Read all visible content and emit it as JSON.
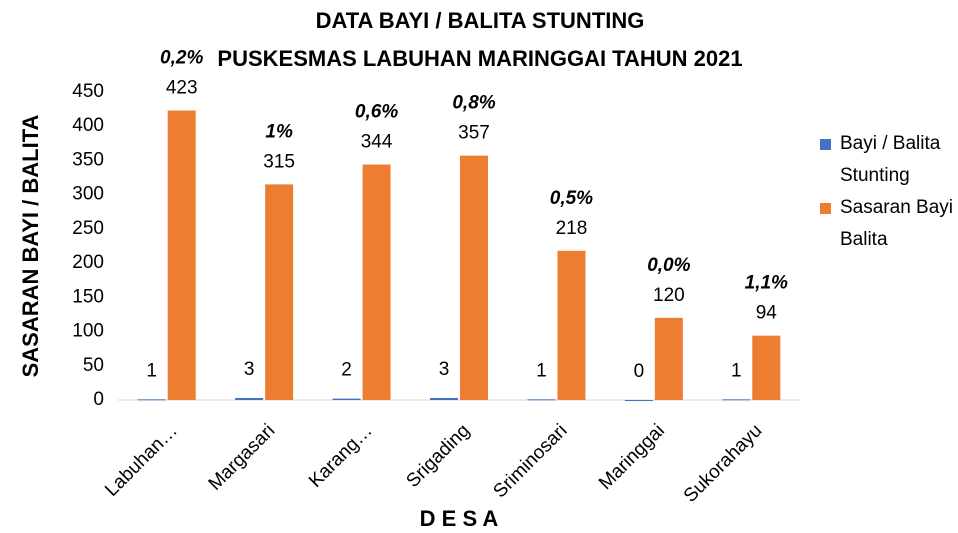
{
  "chart_data": {
    "type": "bar",
    "title": [
      "DATA BAYI / BALITA STUNTING",
      "PUSKESMAS LABUHAN MARINGGAI TAHUN 2021"
    ],
    "ylabel": "SASARAN BAYI / BALITA",
    "xlabel": "D E S A",
    "categories": [
      "Labuhan…",
      "Margasari",
      "Karang…",
      "Srigading",
      "Sriminosari",
      "Maringgai",
      "Sukorahayu"
    ],
    "series": [
      {
        "name": "Bayi / Balita Stunting",
        "color": "#4472c4",
        "values": [
          1,
          3,
          2,
          3,
          1,
          0,
          1
        ]
      },
      {
        "name": "Sasaran Bayi Balita",
        "color": "#ed7d31",
        "values": [
          423,
          315,
          344,
          357,
          218,
          120,
          94
        ]
      }
    ],
    "annotations": [
      "0,2%",
      "1%",
      "0,6%",
      "0,8%",
      "0,5%",
      "0,0%",
      "1,1%"
    ],
    "ylim": [
      0,
      450
    ],
    "yticks": [
      0,
      50,
      100,
      150,
      200,
      250,
      300,
      350,
      400,
      450
    ],
    "grid": false,
    "legend": "right"
  }
}
